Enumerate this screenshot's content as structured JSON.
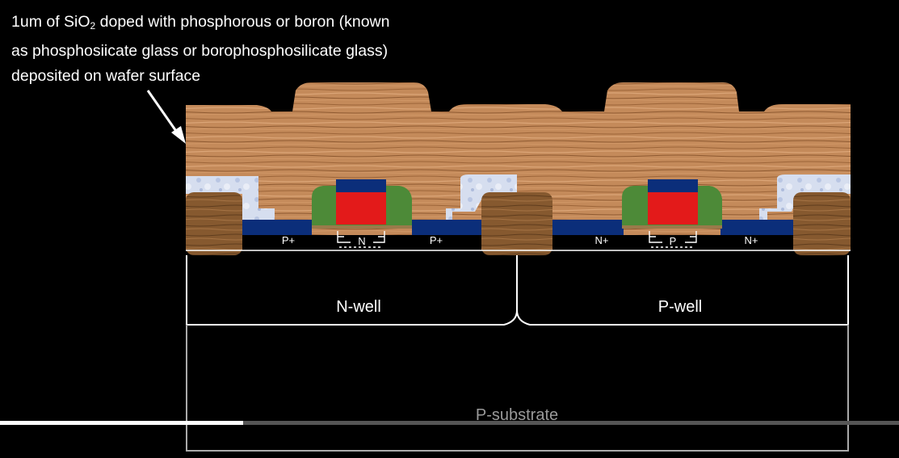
{
  "caption": {
    "line1_a": "1um of SiO",
    "line1_sub": "2",
    "line1_b": " doped with phosphorous or boron (known",
    "line2": "as phosphosiicate glass or borophosphosilicate glass)",
    "line3": "deposited on wafer surface"
  },
  "labels": {
    "p_plus_left": "P+",
    "n_channel": "N",
    "p_plus_right": "P+",
    "n_plus_left": "N+",
    "p_channel": "P",
    "n_plus_right": "N+",
    "n_well": "N-well",
    "p_well": "P-well",
    "p_substrate": "P-substrate"
  },
  "colors": {
    "background": "#000000",
    "oxide_glass": "#c98e5f",
    "gate_poly": "#e31a1a",
    "gate_cap": "#0b2e7a",
    "spacer": "#4d8a38",
    "diffusion_contact": "#0b2e7a",
    "field_oxide": "#8a5f35",
    "lining": "#cfd8ee",
    "well_outline": "#ffffff",
    "substrate_outline": "#b0b0b0"
  },
  "video_progress": {
    "played": 0.27,
    "buffered": 0.27
  }
}
